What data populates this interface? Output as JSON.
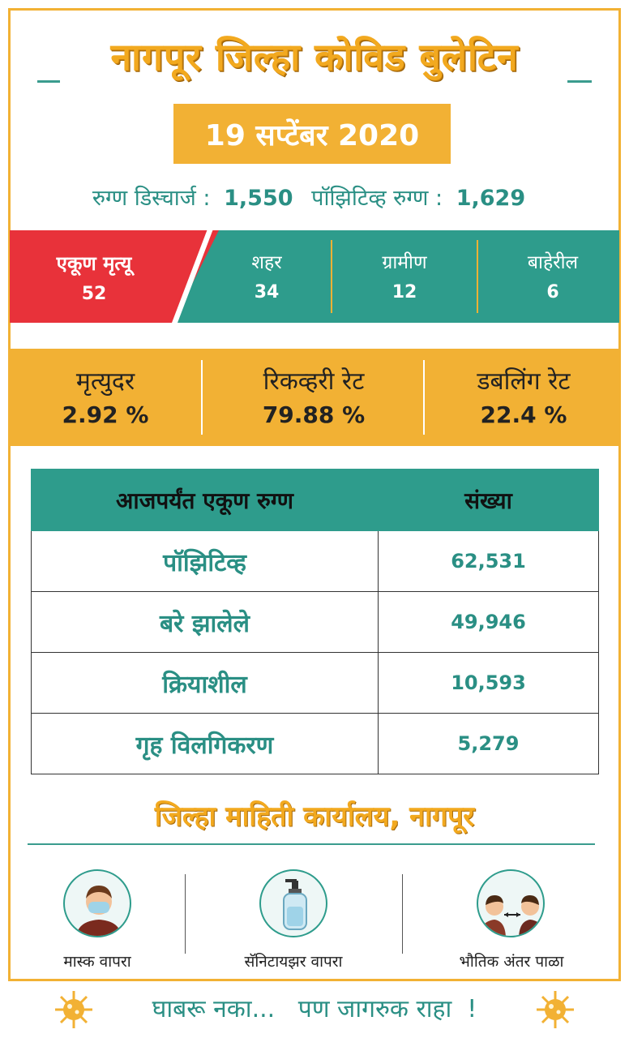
{
  "bulletin": {
    "title": "नागपूर जिल्हा कोविड बुलेटिन",
    "date": "19 सप्टेंबर 2020",
    "discharge_label": "रुग्ण डिस्चार्ज :",
    "discharge_value": "1,550",
    "positive_label": "पॉझिटिव्ह रुग्ण :",
    "positive_value": "1,629"
  },
  "deaths": {
    "total_label": "एकूण मृत्यू",
    "total_value": "52",
    "zones": [
      {
        "label": "शहर",
        "value": "34"
      },
      {
        "label": "ग्रामीण",
        "value": "12"
      },
      {
        "label": "बाहेरील",
        "value": "6"
      }
    ]
  },
  "rates": [
    {
      "label": "मृत्युदर",
      "value": "2.92 %"
    },
    {
      "label": "रिकव्हरी रेट",
      "value": "79.88 %"
    },
    {
      "label": "डबलिंग रेट",
      "value": "22.4 %"
    }
  ],
  "table": {
    "headers": [
      "आजपर्यंत एकूण रुग्ण",
      "संख्या"
    ],
    "rows": [
      {
        "label": "पॉझिटिव्ह",
        "value": "62,531"
      },
      {
        "label": "बरे झालेले",
        "value": "49,946"
      },
      {
        "label": "क्रियाशील",
        "value": "10,593"
      },
      {
        "label": "गृह विलगिकरण",
        "value": "5,279"
      }
    ]
  },
  "office": "जिल्हा माहिती कार्यालय, नागपूर",
  "tips": [
    {
      "icon": "mask-person-icon",
      "label": "मास्क वापरा"
    },
    {
      "icon": "sanitizer-bottle-icon",
      "label": "सॅनिटायझर वापरा"
    },
    {
      "icon": "social-distance-icon",
      "label": "भौतिक अंतर पाळा"
    }
  ],
  "footer": {
    "text": "घाबरू नका...   पण जागरुक राहा  !"
  },
  "colors": {
    "accent_orange": "#f2b134",
    "teal": "#2e9c8c",
    "red": "#e8323a"
  }
}
